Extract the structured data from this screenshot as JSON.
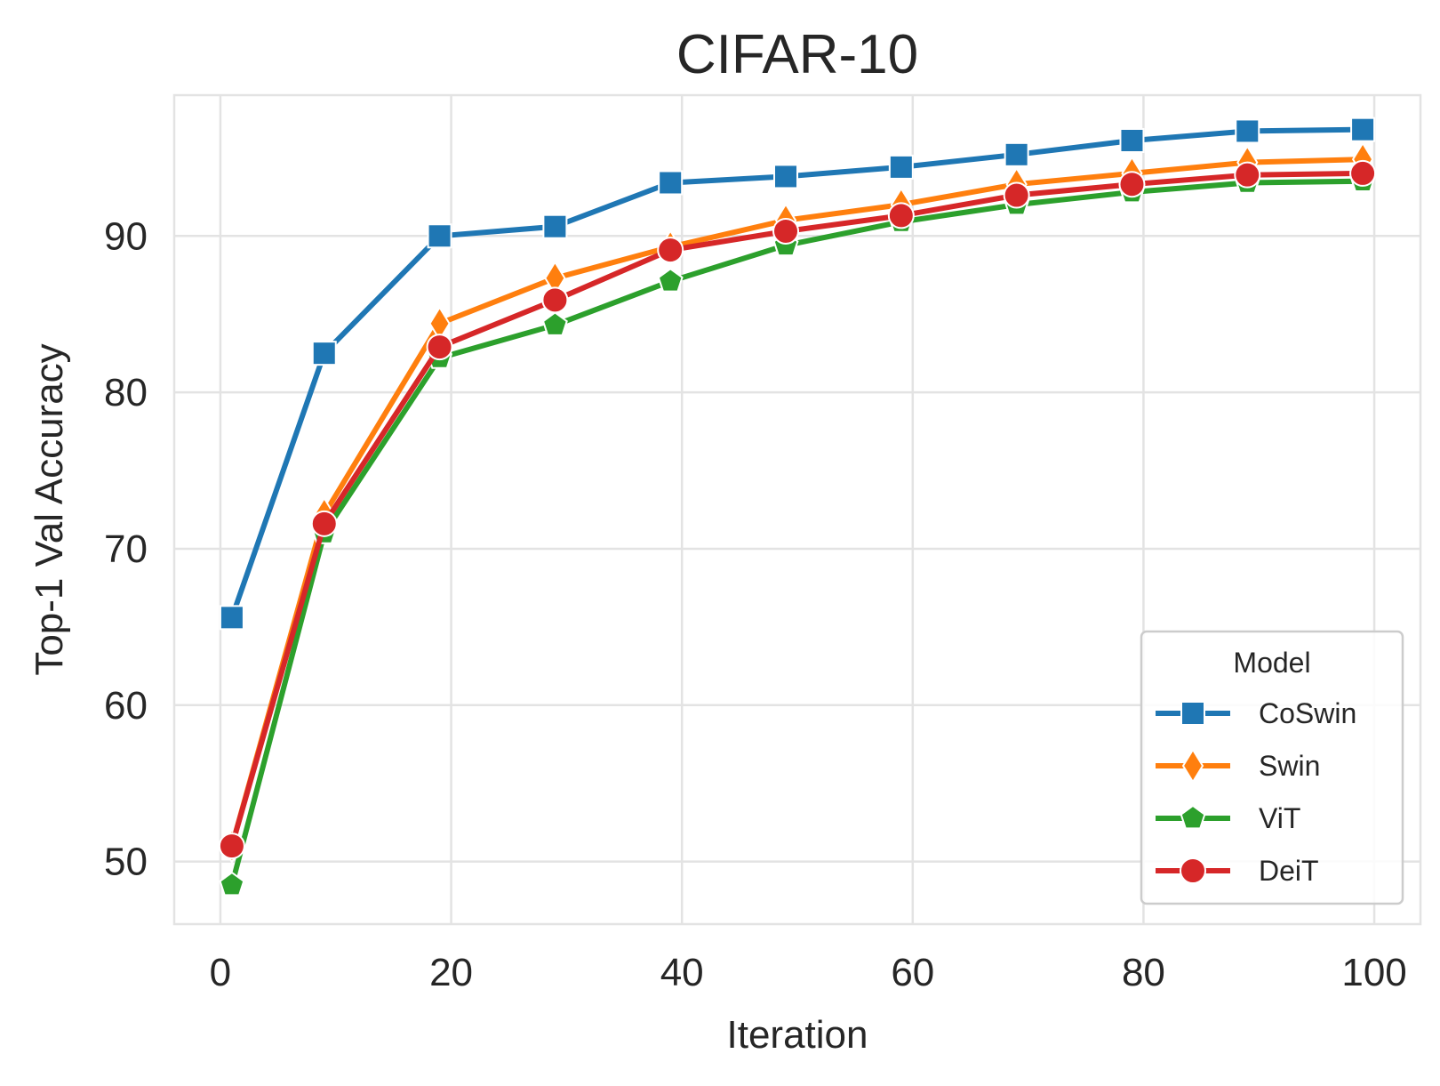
{
  "chart_data": {
    "type": "line",
    "title": "CIFAR-10",
    "xlabel": "Iteration",
    "ylabel": "Top-1 Val Accuracy",
    "xlim": [
      -4,
      104
    ],
    "ylim": [
      46,
      99
    ],
    "xticks": [
      0,
      20,
      40,
      60,
      80,
      100
    ],
    "yticks": [
      50,
      60,
      70,
      80,
      90
    ],
    "x": [
      1,
      9,
      19,
      29,
      39,
      49,
      59,
      69,
      79,
      89,
      99
    ],
    "grid": true,
    "legend": {
      "title": "Model",
      "position": "lower-right"
    },
    "series": [
      {
        "name": "CoSwin",
        "color": "#1f77b4",
        "marker": "square",
        "values": [
          65.6,
          82.5,
          90.0,
          90.6,
          93.4,
          93.8,
          94.4,
          95.2,
          96.1,
          96.7,
          96.8
        ]
      },
      {
        "name": "Swin",
        "color": "#ff7f0e",
        "marker": "thin-diamond",
        "values": [
          51.0,
          72.2,
          84.4,
          87.3,
          89.3,
          91.0,
          92.0,
          93.3,
          94.0,
          94.7,
          94.9
        ]
      },
      {
        "name": "ViT",
        "color": "#2ca02c",
        "marker": "pentagon",
        "values": [
          48.5,
          71.0,
          82.2,
          84.3,
          87.1,
          89.4,
          90.9,
          92.0,
          92.8,
          93.4,
          93.5
        ]
      },
      {
        "name": "DeiT",
        "color": "#d62728",
        "marker": "circle",
        "values": [
          51.0,
          71.6,
          82.9,
          85.9,
          89.1,
          90.3,
          91.3,
          92.6,
          93.3,
          93.9,
          94.0
        ]
      }
    ]
  }
}
